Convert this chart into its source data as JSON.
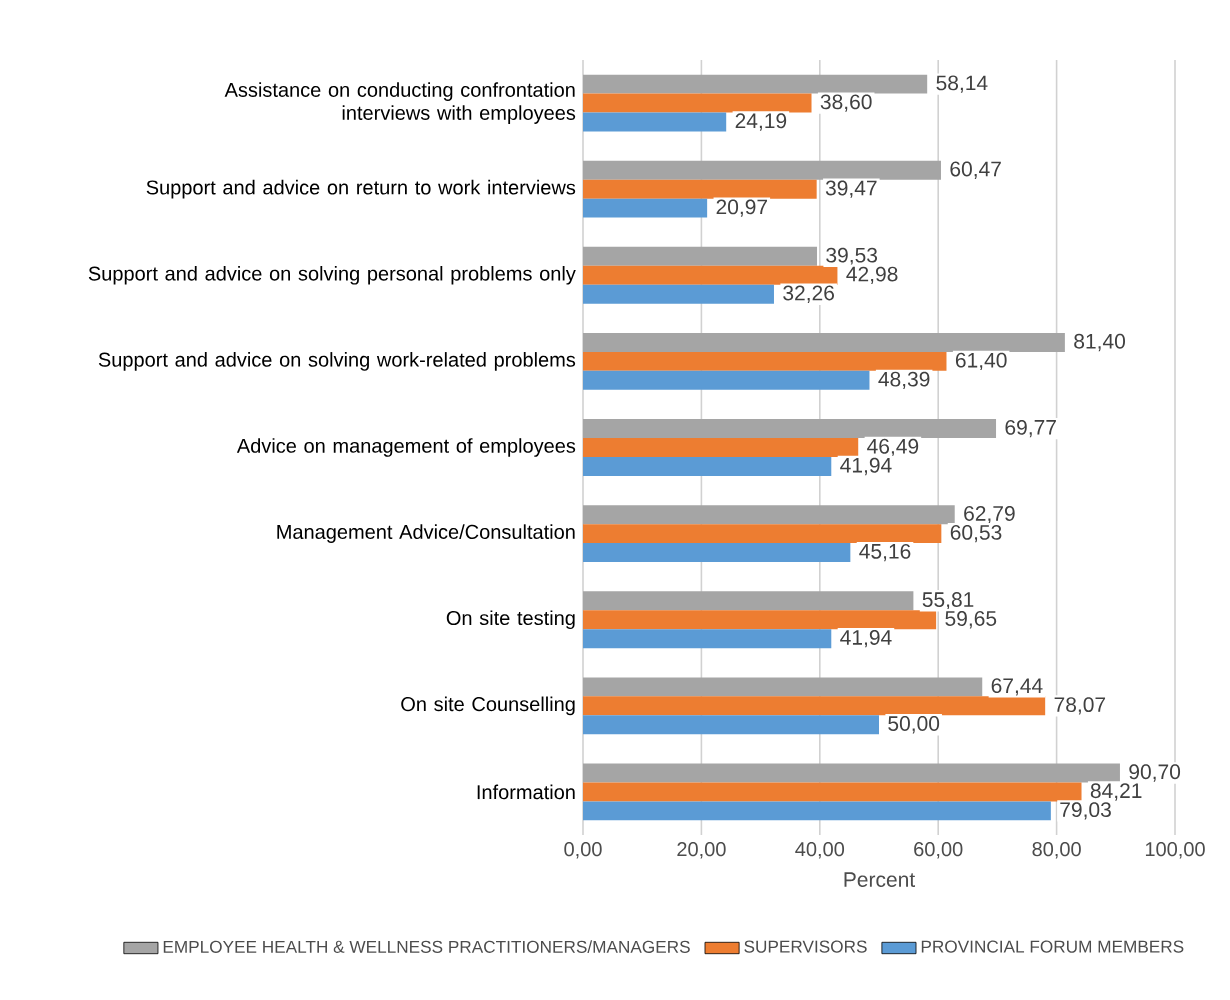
{
  "chart_data": {
    "type": "bar",
    "orientation": "horizontal",
    "xlabel": "Percent",
    "categories": [
      "Assistance on conducting confrontation interviews with employees",
      "Support and advice on return to work interviews",
      "Support and advice on solving personal problems only",
      "Support and advice on solving work-related problems",
      "Advice on management of employees",
      "Management Advice/Consultation",
      "On site testing",
      "On site Counselling",
      "Information"
    ],
    "series": [
      {
        "name": "EMPLOYEE HEALTH & WELLNESS PRACTITIONERS/MANAGERS",
        "color": "#a5a5a5",
        "values": [
          58.14,
          60.47,
          39.53,
          81.4,
          69.77,
          62.79,
          55.81,
          67.44,
          90.7
        ],
        "value_labels": [
          "58,14",
          "60,47",
          "39,53",
          "81,40",
          "69,77",
          "62,79",
          "55,81",
          "67,44",
          "90,70"
        ]
      },
      {
        "name": "SUPERVISORS",
        "color": "#ed7d31",
        "values": [
          38.6,
          39.47,
          42.98,
          61.4,
          46.49,
          60.53,
          59.65,
          78.07,
          84.21
        ],
        "value_labels": [
          "38,60",
          "39,47",
          "42,98",
          "61,40",
          "46,49",
          "60,53",
          "59,65",
          "78,07",
          "84,21"
        ]
      },
      {
        "name": "PROVINCIAL FORUM MEMBERS",
        "color": "#5b9bd5",
        "values": [
          24.19,
          20.97,
          32.26,
          48.39,
          41.94,
          45.16,
          41.94,
          50.0,
          79.03
        ],
        "value_labels": [
          "24,19",
          "20,97",
          "32,26",
          "48,39",
          "41,94",
          "45,16",
          "41,94",
          "50,00",
          "79,03"
        ]
      }
    ],
    "xlim": [
      0,
      100
    ],
    "xticks": [
      {
        "value": 0,
        "label": "0,00"
      },
      {
        "value": 20,
        "label": "20,00"
      },
      {
        "value": 40,
        "label": "40,00"
      },
      {
        "value": 60,
        "label": "60,00"
      },
      {
        "value": 80,
        "label": "80,00"
      },
      {
        "value": 100,
        "label": "100,00"
      }
    ],
    "grid": "x",
    "legend": "bottom"
  }
}
